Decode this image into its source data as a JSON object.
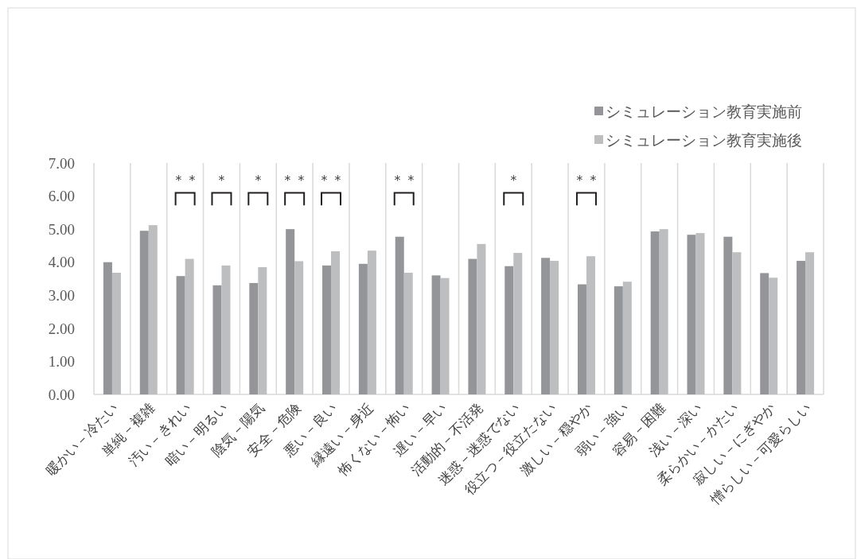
{
  "chart_data": {
    "type": "bar",
    "categories": [
      "暖かい－冷たい",
      "単純－複雑",
      "汚い－きれい",
      "暗い－明るい",
      "陰気－陽気",
      "安全－危険",
      "悪い－良い",
      "縁遠い－身近",
      "怖くない－怖い",
      "遅い－早い",
      "活動的－不活発",
      "迷惑－迷惑でない",
      "役立つ－役立たない",
      "激しい－穏やか",
      "弱い－強い",
      "容易－困難",
      "浅い－深い",
      "柔らかい－かたい",
      "寂しい－にぎやか",
      "憎らしい－可愛らしい"
    ],
    "series": [
      {
        "name": "シミュレーション教育実施前",
        "color": "#939598",
        "values": [
          4.0,
          4.95,
          3.58,
          3.3,
          3.37,
          5.0,
          3.9,
          3.95,
          4.77,
          3.6,
          4.1,
          3.88,
          4.13,
          3.33,
          3.27,
          4.93,
          4.83,
          4.77,
          3.67,
          4.04
        ]
      },
      {
        "name": "シミュレーション教育実施後",
        "color": "#bcbec0",
        "values": [
          3.68,
          5.12,
          4.1,
          3.9,
          3.85,
          4.03,
          4.33,
          4.35,
          3.68,
          3.52,
          4.55,
          4.28,
          4.04,
          4.18,
          3.41,
          5.0,
          4.88,
          4.3,
          3.53,
          4.3
        ]
      }
    ],
    "ylim": [
      0,
      7
    ],
    "yticks": [
      {
        "value": 0,
        "label": "0.00"
      },
      {
        "value": 1,
        "label": "1.00"
      },
      {
        "value": 2,
        "label": "2.00"
      },
      {
        "value": 3,
        "label": "3.00"
      },
      {
        "value": 4,
        "label": "4.00"
      },
      {
        "value": 5,
        "label": "5.00"
      },
      {
        "value": 6,
        "label": "6.00"
      },
      {
        "value": 7,
        "label": "7.00"
      }
    ],
    "grid": "x",
    "legend": "top right",
    "annotations": [
      "＊＊",
      "＊",
      "＊",
      "＊＊",
      "＊＊",
      "＊＊",
      "＊",
      "＊＊"
    ]
  }
}
